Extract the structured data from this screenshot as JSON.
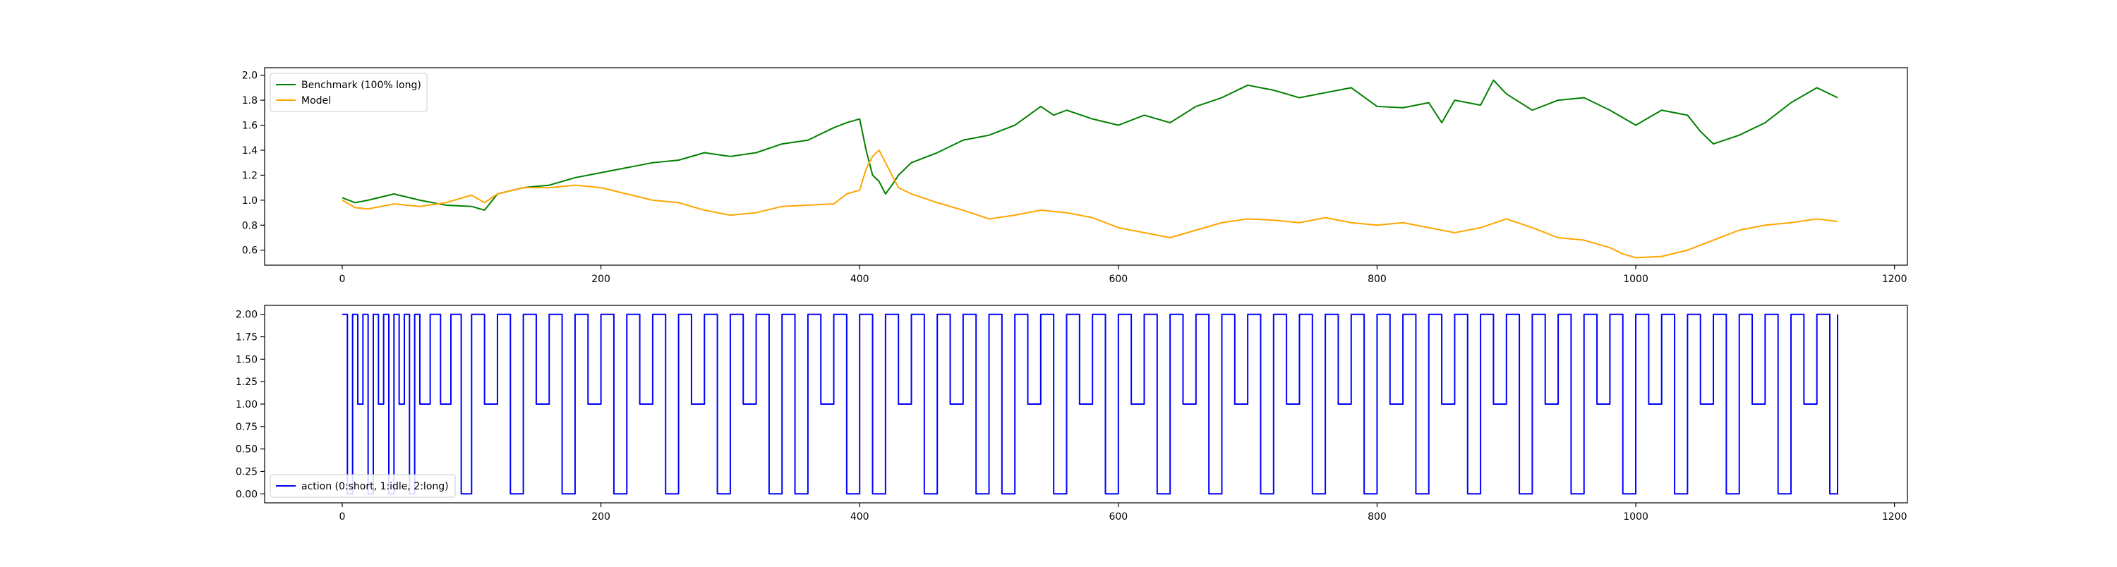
{
  "chart_data": [
    {
      "type": "line",
      "xlim": [
        -60,
        1210
      ],
      "ylim": [
        0.48,
        2.06
      ],
      "x_ticks": [
        0,
        200,
        400,
        600,
        800,
        1000,
        1200
      ],
      "y_ticks": [
        0.6,
        0.8,
        1.0,
        1.2,
        1.4,
        1.6,
        1.8,
        2.0
      ],
      "y_tick_labels": [
        "0.6",
        "0.8",
        "1.0",
        "1.2",
        "1.4",
        "1.6",
        "1.8",
        "2.0"
      ],
      "legend_position": "top-left",
      "grid": false,
      "series": [
        {
          "name": "Benchmark (100% long)",
          "color": "#008000",
          "x": [
            0,
            10,
            20,
            40,
            60,
            80,
            100,
            110,
            120,
            140,
            160,
            180,
            200,
            220,
            240,
            260,
            280,
            300,
            320,
            340,
            360,
            380,
            390,
            400,
            405,
            410,
            415,
            420,
            425,
            430,
            440,
            460,
            480,
            500,
            520,
            540,
            550,
            560,
            580,
            600,
            620,
            640,
            660,
            680,
            700,
            720,
            740,
            760,
            780,
            800,
            820,
            840,
            850,
            860,
            880,
            890,
            900,
            920,
            940,
            960,
            980,
            1000,
            1020,
            1040,
            1050,
            1060,
            1080,
            1100,
            1120,
            1140,
            1156
          ],
          "values": [
            1.02,
            0.98,
            1.0,
            1.05,
            1.0,
            0.96,
            0.95,
            0.92,
            1.05,
            1.1,
            1.12,
            1.18,
            1.22,
            1.26,
            1.3,
            1.32,
            1.38,
            1.35,
            1.38,
            1.45,
            1.48,
            1.58,
            1.62,
            1.65,
            1.4,
            1.2,
            1.15,
            1.05,
            1.12,
            1.2,
            1.3,
            1.38,
            1.48,
            1.52,
            1.6,
            1.75,
            1.68,
            1.72,
            1.65,
            1.6,
            1.68,
            1.62,
            1.75,
            1.82,
            1.92,
            1.88,
            1.82,
            1.86,
            1.9,
            1.75,
            1.74,
            1.78,
            1.62,
            1.8,
            1.76,
            1.96,
            1.85,
            1.72,
            1.8,
            1.82,
            1.72,
            1.6,
            1.72,
            1.68,
            1.55,
            1.45,
            1.52,
            1.62,
            1.78,
            1.9,
            1.82
          ]
        },
        {
          "name": "Model",
          "color": "#ffa500",
          "x": [
            0,
            10,
            20,
            40,
            60,
            80,
            100,
            110,
            120,
            140,
            160,
            180,
            200,
            220,
            240,
            260,
            280,
            300,
            320,
            340,
            360,
            380,
            390,
            400,
            405,
            410,
            415,
            420,
            425,
            430,
            440,
            460,
            480,
            500,
            520,
            540,
            560,
            580,
            600,
            620,
            640,
            660,
            680,
            700,
            720,
            740,
            760,
            780,
            800,
            820,
            840,
            860,
            880,
            900,
            920,
            940,
            960,
            980,
            990,
            1000,
            1020,
            1040,
            1060,
            1080,
            1100,
            1120,
            1140,
            1156
          ],
          "values": [
            1.0,
            0.94,
            0.93,
            0.97,
            0.95,
            0.98,
            1.04,
            0.98,
            1.05,
            1.1,
            1.1,
            1.12,
            1.1,
            1.05,
            1.0,
            0.98,
            0.92,
            0.88,
            0.9,
            0.95,
            0.96,
            0.97,
            1.05,
            1.08,
            1.25,
            1.35,
            1.4,
            1.3,
            1.2,
            1.1,
            1.05,
            0.98,
            0.92,
            0.85,
            0.88,
            0.92,
            0.9,
            0.86,
            0.78,
            0.74,
            0.7,
            0.76,
            0.82,
            0.85,
            0.84,
            0.82,
            0.86,
            0.82,
            0.8,
            0.82,
            0.78,
            0.74,
            0.78,
            0.85,
            0.78,
            0.7,
            0.68,
            0.62,
            0.57,
            0.54,
            0.55,
            0.6,
            0.68,
            0.76,
            0.8,
            0.82,
            0.85,
            0.83
          ]
        }
      ]
    },
    {
      "type": "line",
      "xlim": [
        -60,
        1210
      ],
      "ylim": [
        -0.1,
        2.1
      ],
      "x_ticks": [
        0,
        200,
        400,
        600,
        800,
        1000,
        1200
      ],
      "y_ticks": [
        0.0,
        0.25,
        0.5,
        0.75,
        1.0,
        1.25,
        1.5,
        1.75,
        2.0
      ],
      "y_tick_labels": [
        "0.00",
        "0.25",
        "0.50",
        "0.75",
        "1.00",
        "1.25",
        "1.50",
        "1.75",
        "2.00"
      ],
      "legend_position": "bottom-left",
      "grid": false,
      "series": [
        {
          "name": "action (0:short, 1:idle, 2:long)",
          "color": "#0000ff",
          "x": [
            0,
            4,
            8,
            12,
            16,
            20,
            24,
            28,
            32,
            36,
            40,
            44,
            48,
            52,
            56,
            60,
            68,
            76,
            84,
            92,
            100,
            110,
            120,
            130,
            140,
            150,
            160,
            170,
            180,
            190,
            200,
            210,
            220,
            230,
            240,
            250,
            260,
            270,
            280,
            290,
            300,
            310,
            320,
            330,
            340,
            350,
            360,
            370,
            380,
            390,
            400,
            410,
            420,
            430,
            440,
            450,
            460,
            470,
            480,
            490,
            500,
            510,
            520,
            530,
            540,
            550,
            560,
            570,
            580,
            590,
            600,
            610,
            620,
            630,
            640,
            650,
            660,
            670,
            680,
            690,
            700,
            710,
            720,
            730,
            740,
            750,
            760,
            770,
            780,
            790,
            800,
            810,
            820,
            830,
            840,
            850,
            860,
            870,
            880,
            890,
            900,
            910,
            920,
            930,
            940,
            950,
            960,
            970,
            980,
            990,
            1000,
            1010,
            1020,
            1030,
            1040,
            1050,
            1060,
            1070,
            1080,
            1090,
            1100,
            1110,
            1120,
            1130,
            1140,
            1150,
            1156
          ],
          "values": [
            2,
            0,
            2,
            1,
            2,
            0,
            2,
            1,
            2,
            0,
            2,
            1,
            2,
            0,
            2,
            1,
            2,
            1,
            2,
            0,
            2,
            1,
            2,
            0,
            2,
            1,
            2,
            0,
            2,
            1,
            2,
            0,
            2,
            1,
            2,
            0,
            2,
            1,
            2,
            0,
            2,
            1,
            2,
            0,
            2,
            0,
            2,
            1,
            2,
            0,
            2,
            0,
            2,
            1,
            2,
            0,
            2,
            1,
            2,
            0,
            2,
            0,
            2,
            1,
            2,
            0,
            2,
            1,
            2,
            0,
            2,
            1,
            2,
            0,
            2,
            1,
            2,
            0,
            2,
            1,
            2,
            0,
            2,
            1,
            2,
            0,
            2,
            1,
            2,
            0,
            2,
            1,
            2,
            0,
            2,
            1,
            2,
            0,
            2,
            1,
            2,
            0,
            2,
            1,
            2,
            0,
            2,
            1,
            2,
            0,
            2,
            1,
            2,
            0,
            2,
            1,
            2,
            0,
            2,
            1,
            2,
            0,
            2,
            1,
            2,
            0,
            2
          ]
        }
      ]
    }
  ]
}
